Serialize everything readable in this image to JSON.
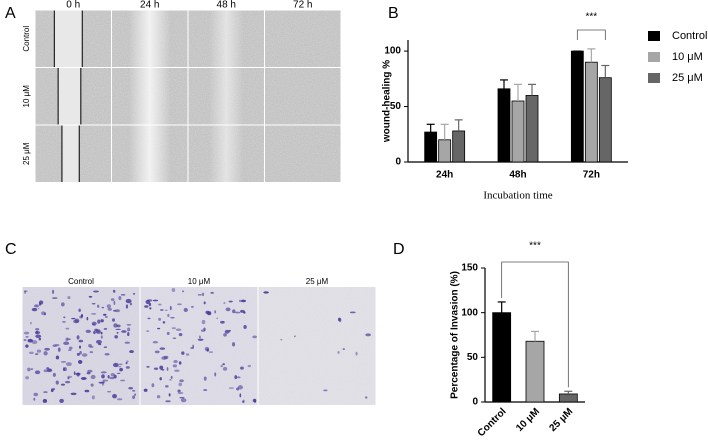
{
  "panel_labels": [
    "A",
    "B",
    "C",
    "D"
  ],
  "wound_images": {
    "columns": [
      "0 h",
      "24 h",
      "48 h",
      "72 h"
    ],
    "rows": [
      "Control",
      "10 μM",
      "25 μM"
    ]
  },
  "invasion_images": {
    "columns": [
      "Control",
      "10 μM",
      "25 μM"
    ]
  },
  "chart_data": [
    {
      "type": "bar",
      "ylabel": "wound-healing %",
      "xlabel": "Incubation time",
      "categories": [
        "24h",
        "48h",
        "72h"
      ],
      "series": [
        {
          "name": "Control",
          "color": "#000000",
          "values": [
            27,
            66,
            100
          ],
          "errors": [
            7,
            8,
            0
          ]
        },
        {
          "name": "10 μM",
          "color": "#a6a6a6",
          "values": [
            20,
            55,
            90
          ],
          "errors": [
            14,
            15,
            12
          ]
        },
        {
          "name": "25 μM",
          "color": "#666666",
          "values": [
            28,
            60,
            76
          ],
          "errors": [
            10,
            10,
            11
          ]
        }
      ],
      "ylim": [
        0,
        110
      ],
      "yticks": [
        0,
        50,
        100
      ],
      "legend": "right",
      "annotations": [
        "***"
      ]
    },
    {
      "type": "bar",
      "ylabel": "Percentage of Invasion (%)",
      "categories": [
        "Control",
        "10 μM",
        "25 μM"
      ],
      "series": [
        {
          "colors": [
            "#000000",
            "#a6a6a6",
            "#666666"
          ],
          "values": [
            100,
            68,
            9
          ],
          "errors": [
            12,
            11,
            3
          ]
        }
      ],
      "ylim": [
        0,
        150
      ],
      "yticks": [
        0,
        50,
        100,
        150
      ],
      "annotations": [
        "***"
      ]
    }
  ]
}
